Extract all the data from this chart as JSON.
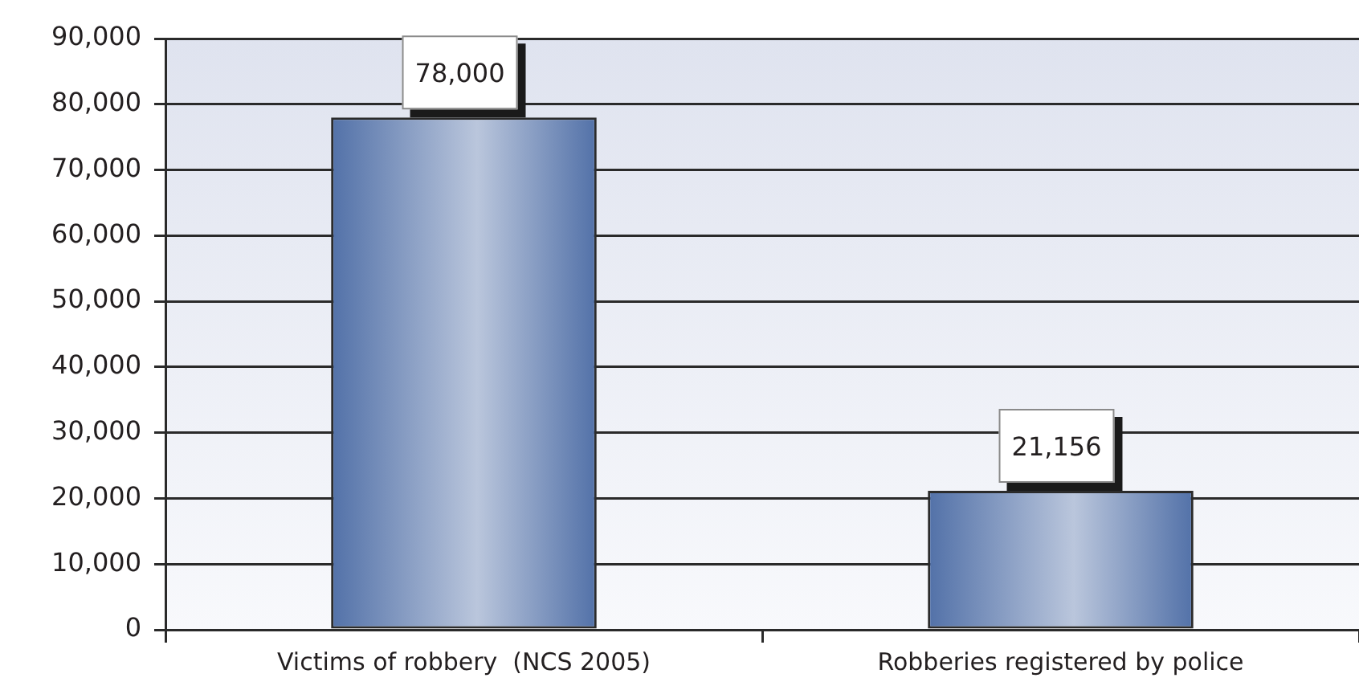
{
  "chart_data": {
    "type": "bar",
    "categories": [
      "Victims of robbery  (NCS 2005)",
      "Robberies registered by police"
    ],
    "values": [
      78000,
      21156
    ],
    "color": "#5271a8",
    "value_labels": [
      "78,000",
      "21,156"
    ],
    "ylim": [
      0,
      90000
    ],
    "yticks": [
      0,
      {
        "value": 10000,
        "label": "10,000"
      },
      {
        "value": 20000,
        "label": "20,000"
      },
      {
        "value": 30000,
        "label": "30,000"
      },
      {
        "value": 40000,
        "label": "40,000"
      },
      {
        "value": 50000,
        "label": "50,000"
      },
      {
        "value": 60000,
        "label": "60,000"
      },
      {
        "value": 70000,
        "label": "70,000"
      },
      {
        "value": 80000,
        "label": "80,000"
      },
      {
        "value": 90000,
        "label": "90,000"
      }
    ],
    "grid": "y"
  }
}
